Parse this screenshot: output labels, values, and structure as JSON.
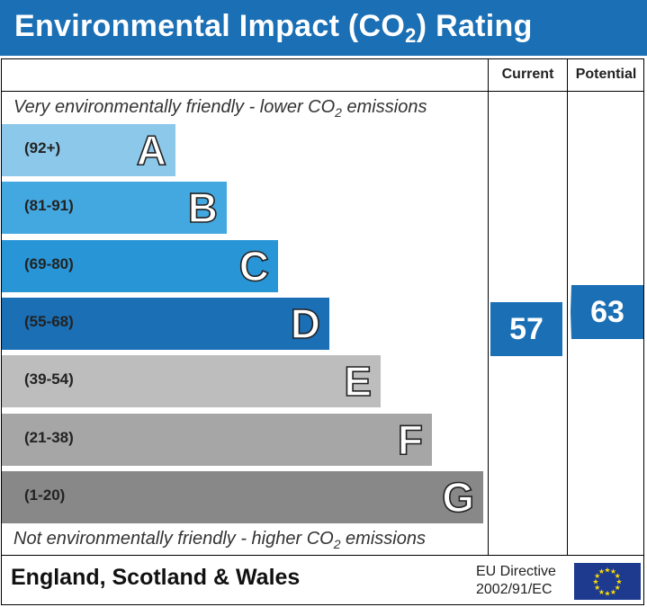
{
  "header": {
    "title_before": "Environmental Impact (CO",
    "title_sub": "2",
    "title_after": ") Rating"
  },
  "columns": {
    "current": "Current",
    "potential": "Potential"
  },
  "notes": {
    "top_before": "Very environmentally friendly - lower CO",
    "top_sub": "2",
    "top_after": " emissions",
    "bottom_before": "Not environmentally friendly - higher CO",
    "bottom_sub": "2",
    "bottom_after": " emissions"
  },
  "footer": {
    "country": "England, Scotland & Wales",
    "directive_line1": "EU Directive",
    "directive_line2": "2002/91/EC"
  },
  "chart_data": {
    "type": "bar",
    "bands": [
      {
        "letter": "A",
        "range": "(92+)",
        "color": "#8cc8ea"
      },
      {
        "letter": "B",
        "range": "(81-91)",
        "color": "#44a8e0"
      },
      {
        "letter": "C",
        "range": "(69-80)",
        "color": "#2896d6"
      },
      {
        "letter": "D",
        "range": "(55-68)",
        "color": "#1a6fb5"
      },
      {
        "letter": "E",
        "range": "(39-54)",
        "color": "#bdbdbd"
      },
      {
        "letter": "F",
        "range": "(21-38)",
        "color": "#a6a6a6"
      },
      {
        "letter": "G",
        "range": "(1-20)",
        "color": "#888888"
      }
    ],
    "current": {
      "value": 57,
      "color": "#1a6fb5"
    },
    "potential": {
      "value": 63,
      "color": "#1a6fb5"
    }
  }
}
